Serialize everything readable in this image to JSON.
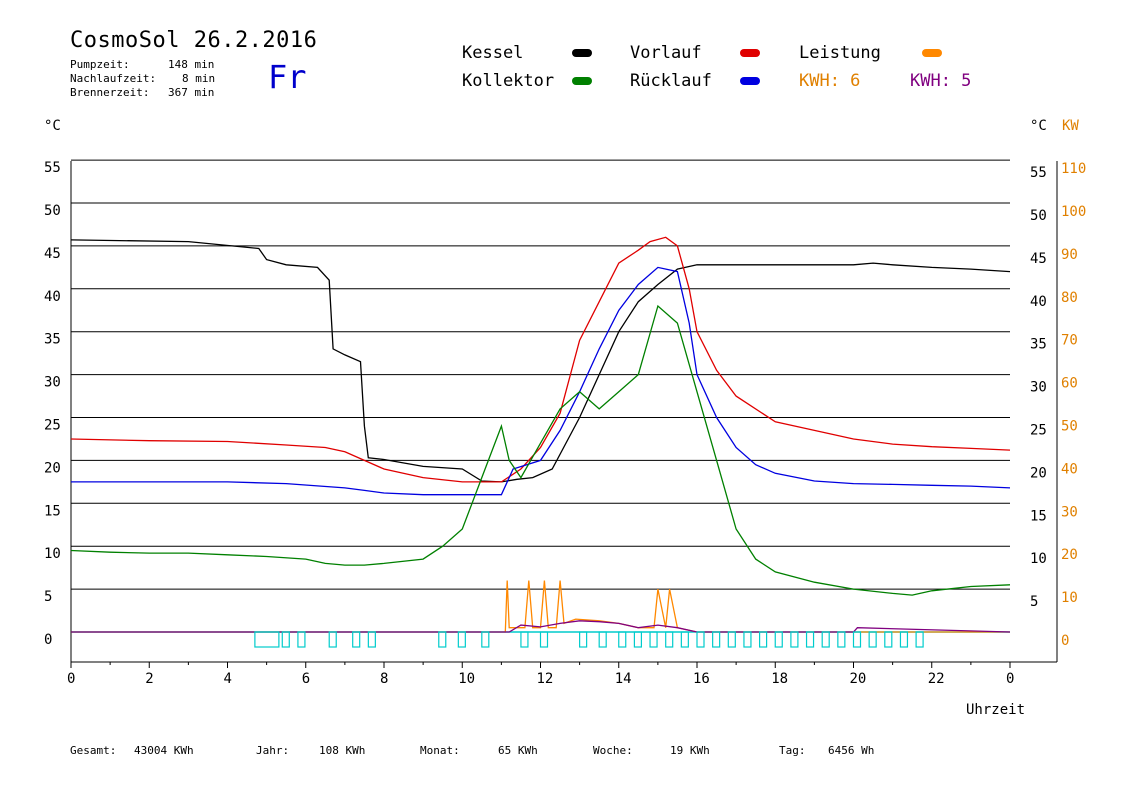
{
  "header": {
    "title": "CosmoSol 26.2.2016",
    "day": "Fr",
    "pumpzeit_label": "Pumpzeit:",
    "pumpzeit_value": "148 min",
    "nachlauf_label": "Nachlaufzeit:",
    "nachlauf_value": "8 min",
    "brenner_label": "Brennerzeit:",
    "brenner_value": "367 min"
  },
  "legend": {
    "kessel": "Kessel",
    "vorlauf": "Vorlauf",
    "leistung": "Leistung",
    "kollektor": "Kollektor",
    "ruecklauf": "Rücklauf",
    "kwh_orange": "KWH: 6",
    "kwh_purple": "KWH: 5"
  },
  "colors": {
    "kessel": "#000000",
    "vorlauf": "#e00000",
    "leistung": "#ff8800",
    "kollektor": "#008000",
    "ruecklauf": "#0000e0",
    "kwh_orange": "#e08000",
    "kwh_purple": "#800080",
    "zero_line": "#00cccc",
    "axis_orange": "#e08000"
  },
  "axes": {
    "left_unit": "°C",
    "right_unit": "°C",
    "right_kw_unit": "KW",
    "xlabel": "Uhrzeit"
  },
  "footer": {
    "gesamt_label": "Gesamt:",
    "gesamt_value": "43004 KWh",
    "jahr_label": "Jahr:",
    "jahr_value": "108 KWh",
    "monat_label": "Monat:",
    "monat_value": "65 KWh",
    "woche_label": "Woche:",
    "woche_value": "19 KWh",
    "tag_label": "Tag:",
    "tag_value": "6456 Wh"
  },
  "chart_data": {
    "type": "line",
    "xlabel": "Uhrzeit",
    "ylabel": "°C",
    "y2label": "KW",
    "xlim": [
      0,
      24
    ],
    "ylim": [
      -3.5,
      55
    ],
    "grid": true,
    "x_ticks": [
      "0",
      "2",
      "4",
      "6",
      "8",
      "10",
      "12",
      "14",
      "16",
      "18",
      "20",
      "22",
      "0"
    ],
    "y_ticks_left": [
      "0",
      "5",
      "10",
      "15",
      "20",
      "25",
      "30",
      "35",
      "40",
      "45",
      "50",
      "55"
    ],
    "y_ticks_right": [
      "5",
      "10",
      "15",
      "20",
      "25",
      "30",
      "35",
      "40",
      "45",
      "50",
      "55"
    ],
    "y2_ticks": [
      "0",
      "10",
      "20",
      "30",
      "40",
      "50",
      "60",
      "70",
      "80",
      "90",
      "100",
      "110"
    ],
    "series": [
      {
        "name": "Kessel",
        "x": [
          0,
          3,
          4.8,
          5.0,
          5.5,
          6.3,
          6.6,
          6.7,
          7.0,
          7.4,
          7.5,
          7.6,
          8.0,
          9.0,
          10.0,
          10.5,
          11.0,
          11.4,
          11.8,
          12.3,
          13.0,
          13.5,
          14.0,
          14.5,
          15.0,
          15.5,
          16.0,
          18.0,
          19.0,
          20.0,
          20.5,
          21.0,
          22.0,
          23.0,
          24.0
        ],
        "y": [
          45.7,
          45.5,
          44.7,
          43.4,
          42.8,
          42.5,
          41.0,
          33.0,
          32.3,
          31.5,
          24.0,
          20.3,
          20.1,
          19.3,
          19.0,
          17.6,
          17.5,
          17.8,
          18.0,
          19.0,
          25.0,
          30.0,
          35.0,
          38.5,
          40.5,
          42.3,
          42.8,
          42.8,
          42.8,
          42.8,
          43.0,
          42.8,
          42.5,
          42.3,
          42.0
        ]
      },
      {
        "name": "Vorlauf",
        "x": [
          0,
          2,
          4,
          5.5,
          6.5,
          7.0,
          7.5,
          8.0,
          9.0,
          10.0,
          11.0,
          11.5,
          12.0,
          12.5,
          13.0,
          13.5,
          14.0,
          14.5,
          14.8,
          15.2,
          15.5,
          15.8,
          16.0,
          16.5,
          17.0,
          18.0,
          19.0,
          20.0,
          21.0,
          22.0,
          23.0,
          24.0
        ],
        "y": [
          22.5,
          22.3,
          22.2,
          21.8,
          21.5,
          21.0,
          20.0,
          19.0,
          18.0,
          17.5,
          17.5,
          19.0,
          21.5,
          25.5,
          34.0,
          38.5,
          43.0,
          44.5,
          45.5,
          46.0,
          45.0,
          40.0,
          35.0,
          30.5,
          27.5,
          24.5,
          23.5,
          22.5,
          21.9,
          21.6,
          21.4,
          21.2
        ]
      },
      {
        "name": "Rücklauf",
        "x": [
          0,
          2,
          4,
          5.5,
          7.0,
          7.5,
          8.0,
          9.0,
          10.0,
          11.0,
          11.3,
          12.0,
          12.5,
          13.0,
          13.5,
          14.0,
          14.5,
          15.0,
          15.5,
          15.8,
          16.0,
          16.5,
          17.0,
          17.5,
          18.0,
          19.0,
          20.0,
          21.0,
          22.0,
          23.0,
          24.0
        ],
        "y": [
          17.5,
          17.5,
          17.5,
          17.3,
          16.8,
          16.5,
          16.2,
          16.0,
          16.0,
          16.0,
          19.0,
          20.0,
          23.5,
          28.0,
          33.0,
          37.5,
          40.5,
          42.5,
          42.0,
          36.0,
          30.0,
          25.0,
          21.5,
          19.5,
          18.5,
          17.6,
          17.3,
          17.2,
          17.1,
          17.0,
          16.8
        ]
      },
      {
        "name": "Kollektor",
        "x": [
          0,
          1,
          2,
          3,
          4,
          5,
          6,
          6.5,
          7.0,
          7.5,
          8.0,
          9.0,
          9.5,
          10.0,
          10.5,
          11.0,
          11.2,
          11.5,
          12.0,
          12.5,
          13.0,
          13.5,
          14.0,
          14.5,
          15.0,
          15.5,
          16.0,
          16.5,
          17.0,
          17.5,
          18.0,
          19.0,
          20.0,
          21.0,
          21.5,
          22.0,
          23.0,
          24.0
        ],
        "y": [
          9.5,
          9.3,
          9.2,
          9.2,
          9.0,
          8.8,
          8.5,
          8.0,
          7.8,
          7.8,
          8.0,
          8.5,
          10.0,
          12.0,
          18.0,
          24.0,
          20.0,
          18.0,
          22.0,
          26.0,
          28.0,
          26.0,
          28.0,
          30.0,
          38.0,
          36.0,
          28.0,
          20.0,
          12.0,
          8.5,
          7.0,
          5.8,
          5.0,
          4.5,
          4.3,
          4.8,
          5.3,
          5.5
        ]
      },
      {
        "name": "Leistung",
        "x": [
          0,
          11.1,
          11.15,
          11.2,
          11.6,
          11.7,
          11.8,
          12.0,
          12.1,
          12.2,
          12.4,
          12.5,
          12.6,
          12.9,
          13.5,
          14.0,
          14.5,
          14.9,
          15.0,
          15.2,
          15.3,
          15.5,
          16.0,
          24.0
        ],
        "y": [
          0,
          0,
          6.0,
          0.5,
          0.5,
          6.0,
          0.5,
          0.5,
          6.0,
          0.5,
          0.5,
          6.0,
          1.0,
          1.5,
          1.3,
          1.0,
          0.5,
          0.5,
          5.0,
          0.5,
          5.0,
          0.5,
          0,
          0
        ]
      },
      {
        "name": "KWH: 5",
        "x": [
          0,
          11.2,
          11.5,
          12.0,
          12.5,
          13.0,
          13.5,
          14.0,
          14.5,
          15.0,
          15.5,
          16.0,
          20.0,
          20.1,
          24.0
        ],
        "y": [
          0,
          0,
          0.8,
          0.6,
          1.0,
          1.3,
          1.2,
          1.0,
          0.5,
          0.8,
          0.5,
          0,
          0,
          0.5,
          0
        ]
      }
    ]
  }
}
